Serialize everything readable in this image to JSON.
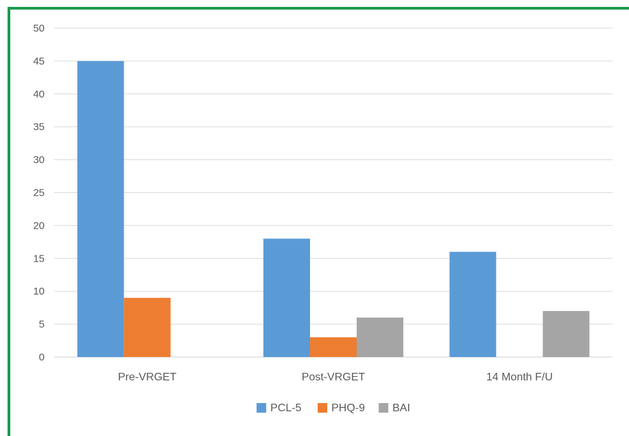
{
  "chart_data": {
    "type": "bar",
    "categories": [
      "Pre-VRGET",
      "Post-VRGET",
      "14 Month F/U"
    ],
    "series": [
      {
        "name": "PCL-5",
        "color": "#5b9bd5",
        "values": [
          45,
          18,
          16
        ]
      },
      {
        "name": "PHQ-9",
        "color": "#ed7d31",
        "values": [
          9,
          3,
          0
        ]
      },
      {
        "name": "BAI",
        "color": "#a5a5a5",
        "values": [
          0,
          6,
          7
        ]
      }
    ],
    "ylim": [
      0,
      50
    ],
    "yticks": [
      0,
      5,
      10,
      15,
      20,
      25,
      30,
      35,
      40,
      45,
      50
    ],
    "grid": true,
    "legend_position": "bottom",
    "title": "",
    "xlabel": "",
    "ylabel": ""
  },
  "colors": {
    "frame_border": "#1e9a50",
    "gridline": "#d9d9d9",
    "axis_text": "#595959"
  }
}
